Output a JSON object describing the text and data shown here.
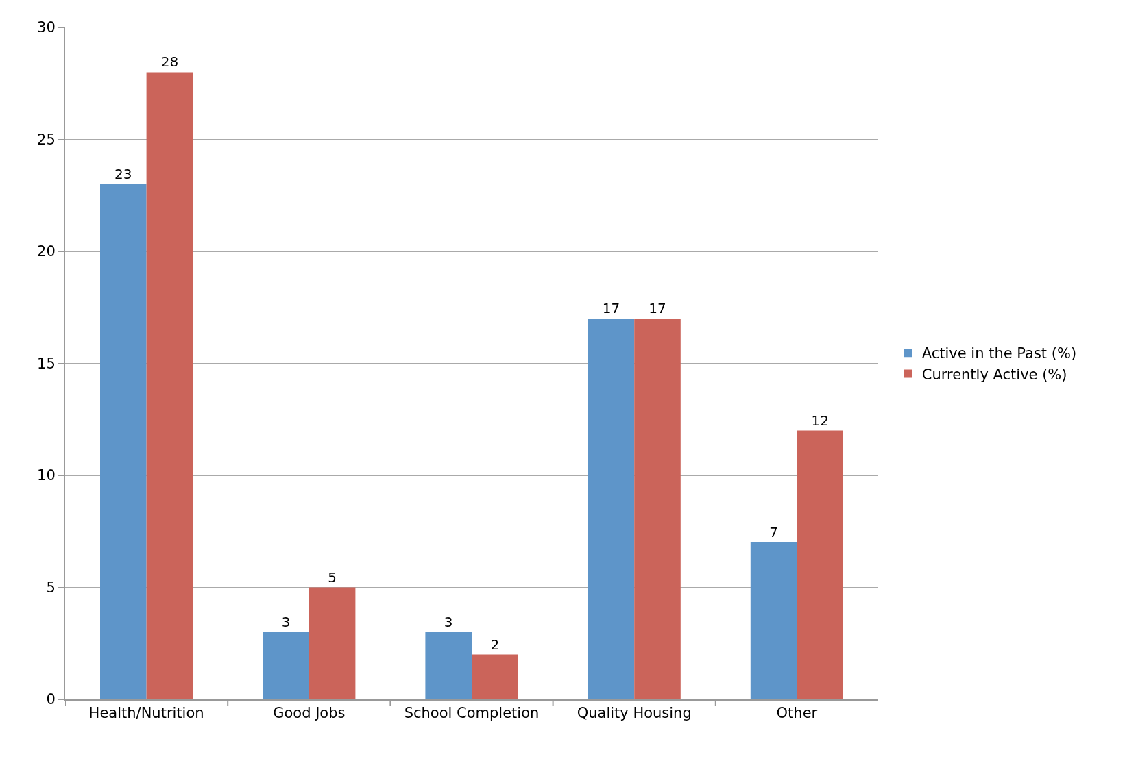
{
  "chart_data": {
    "type": "bar",
    "categories": [
      "Health/Nutrition",
      "Good Jobs",
      "School Completion",
      "Quality Housing",
      "Other"
    ],
    "series": [
      {
        "name": "Active in the Past (%)",
        "color": "#5e95c9",
        "values": [
          23,
          3,
          3,
          17,
          7
        ]
      },
      {
        "name": "Currently Active (%)",
        "color": "#cb645a",
        "values": [
          28,
          5,
          2,
          17,
          12
        ]
      }
    ],
    "ylim": [
      0,
      30
    ],
    "yticks": [
      0,
      5,
      10,
      15,
      20,
      25,
      30
    ],
    "grid": "y",
    "legend": "right",
    "data_labels": true
  }
}
